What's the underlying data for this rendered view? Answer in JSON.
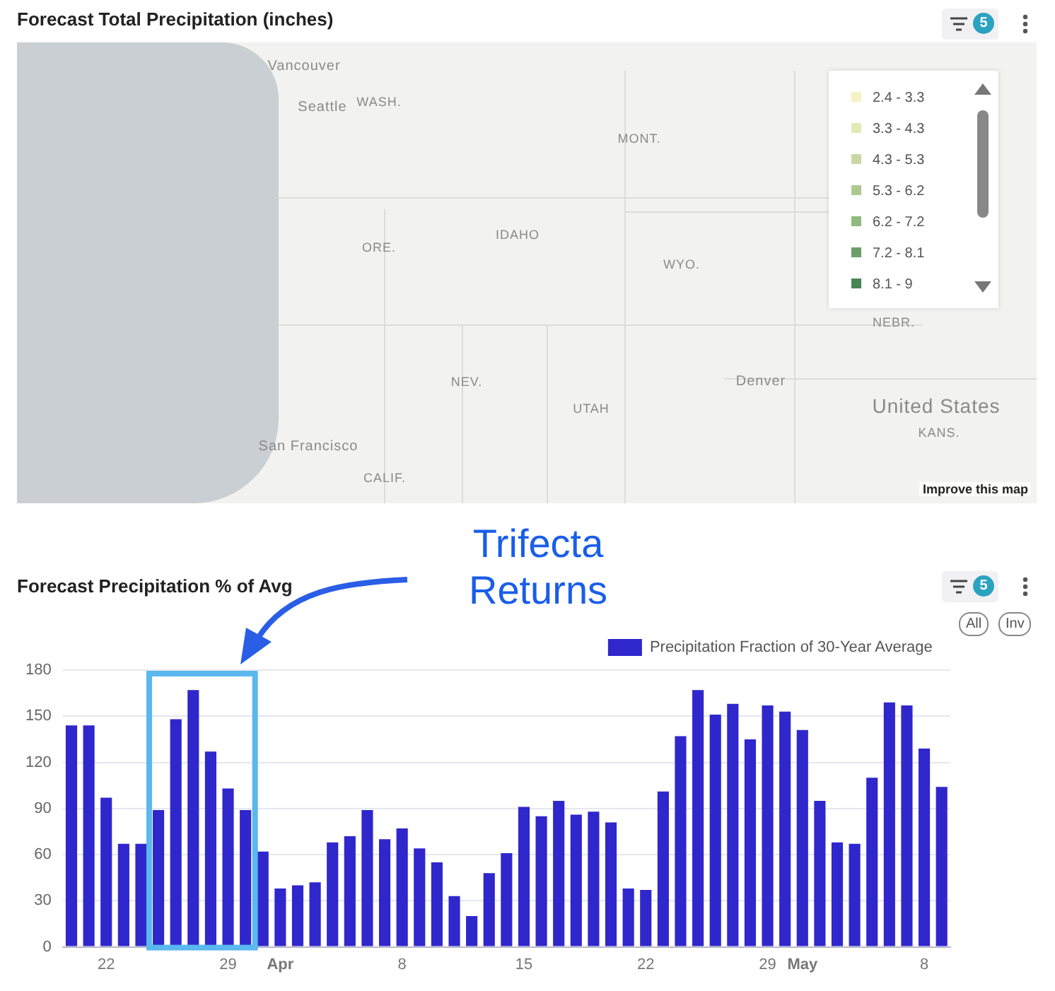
{
  "chart_data": [
    {
      "type": "other",
      "title": "Forecast Total Precipitation (inches)",
      "categories": [
        "2.4 - 3.3",
        "3.3 - 4.3",
        "4.3 - 5.3",
        "5.3 - 6.2",
        "6.2 - 7.2",
        "7.2 - 8.1",
        "8.1 - 9"
      ],
      "colors": [
        "#f5f2c4",
        "#e2eab8",
        "#c8d8a2",
        "#adc890",
        "#92b97f",
        "#6c9e69",
        "#488553"
      ],
      "annotations": [
        "Vancouver",
        "Seattle",
        "WASH.",
        "MONT.",
        "IDAHO",
        "ORE.",
        "WYO.",
        "NEBR.",
        "NEV.",
        "UTAH",
        "Denver",
        "United States",
        "KANS.",
        "San Francisco",
        "CALIF.",
        "Improve this map",
        "5"
      ]
    },
    {
      "type": "bar",
      "title": "Forecast Precipitation % of Avg",
      "categories": [
        null,
        null,
        "22",
        null,
        null,
        null,
        null,
        null,
        null,
        "29",
        null,
        null,
        "Apr",
        null,
        null,
        null,
        null,
        null,
        null,
        "8",
        null,
        null,
        null,
        null,
        null,
        null,
        "15",
        null,
        null,
        null,
        null,
        null,
        null,
        "22",
        null,
        null,
        null,
        null,
        null,
        null,
        "29",
        null,
        "May",
        null,
        null,
        null,
        null,
        null,
        null,
        "8",
        null
      ],
      "series": [
        {
          "name": "Precipitation Fraction of 30-Year Average",
          "color": "#2f27cc",
          "values": [
            144,
            144,
            97,
            67,
            67,
            89,
            148,
            167,
            127,
            103,
            89,
            62,
            38,
            40,
            42,
            68,
            72,
            89,
            70,
            77,
            64,
            55,
            33,
            20,
            48,
            61,
            91,
            85,
            95,
            86,
            88,
            81,
            38,
            37,
            101,
            137,
            167,
            151,
            158,
            135,
            157,
            153,
            141,
            95,
            68,
            67,
            110,
            159,
            157,
            129,
            104
          ]
        }
      ],
      "ylim": [
        0,
        180
      ],
      "yticks": [
        0,
        30,
        60,
        90,
        120,
        150,
        180
      ],
      "grid": "y",
      "legend": "top right",
      "annotations": [
        "Trifecta Returns",
        "All",
        "Inv",
        "5"
      ]
    }
  ]
}
